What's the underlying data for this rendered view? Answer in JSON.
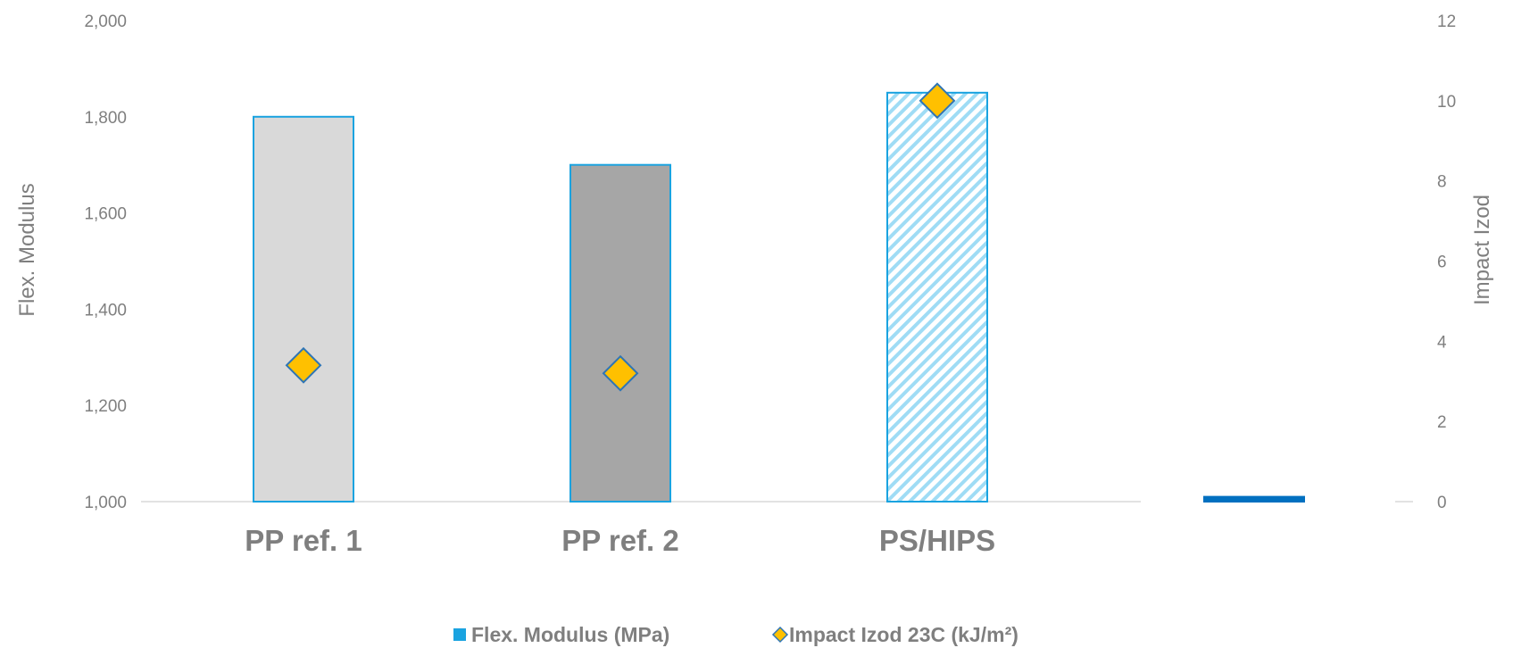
{
  "chart_data": {
    "type": "bar",
    "categories": [
      "PP ref. 1",
      "PP ref. 2",
      "PS/HIPS",
      ""
    ],
    "series": [
      {
        "name": "Flex. Modulus (MPa)",
        "type": "bar",
        "axis": "left",
        "values": [
          1800,
          1700,
          1850,
          1010
        ],
        "fills": [
          "#d9d9d9",
          "#a6a6a6",
          "hatch-light-blue",
          "#0070c0"
        ]
      },
      {
        "name": "Impact Izod 23C (kJ/m²)",
        "type": "scatter",
        "axis": "right",
        "values": [
          3.4,
          3.2,
          10.0,
          null
        ],
        "marker": "diamond"
      }
    ],
    "ylabel": "Flex. Modulus",
    "y2label": "Impact Izod",
    "ylim": [
      1000,
      2000
    ],
    "y2lim": [
      0,
      12
    ],
    "yticks": [
      "1,000",
      "1,200",
      "1,400",
      "1,600",
      "1,800",
      "2,000"
    ],
    "y2ticks": [
      "0",
      "2",
      "4",
      "6",
      "8",
      "10",
      "12"
    ],
    "legend_position": "bottom",
    "grid": false
  },
  "colors": {
    "bar_border": "#1aa3e0",
    "marker_fill": "#ffc000",
    "marker_stroke": "#2e75b6",
    "hatch": "#9fdcf5",
    "text": "#7f7f7f",
    "axis_line": "#d9d9d9",
    "legend_bar_swatch": "#1aa3e0"
  }
}
